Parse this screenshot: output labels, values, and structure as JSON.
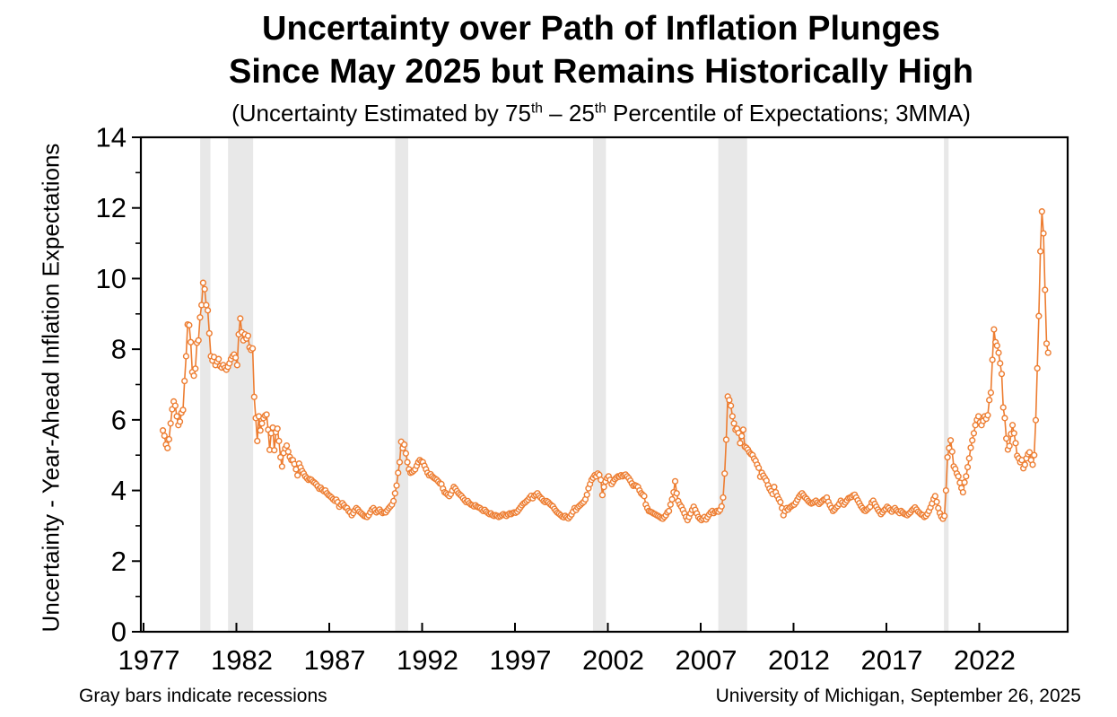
{
  "header": {
    "title_line1": "Uncertainty over Path of Inflation Plunges",
    "title_line2": "Since May 2025 but Remains Historically High",
    "subtitle_parts": [
      "(Uncertainty Estimated by 75",
      "th",
      " – 25",
      "th",
      " Percentile of Expectations; 3MMA)"
    ]
  },
  "footer": {
    "left_note": "Gray bars indicate recessions",
    "right_note": "University of Michigan, September 26, 2025"
  },
  "chart_data": {
    "type": "line",
    "title": "Uncertainty over Path of Inflation Plunges Since May 2025 but Remains Historically High",
    "subtitle": "(Uncertainty Estimated by 75th – 25th Percentile of Expectations; 3MMA)",
    "xlabel": "",
    "ylabel": "Uncertainty - Year-Ahead Inflation Expectations",
    "ylim": [
      0,
      14
    ],
    "xlim": [
      1976.855,
      2026.76
    ],
    "y_major_ticks": [
      0,
      2,
      4,
      6,
      8,
      10,
      12,
      14
    ],
    "y_minor_ticks": [
      1,
      3,
      5,
      7,
      9,
      11,
      13
    ],
    "x_ticks": [
      1977,
      1982,
      1987,
      1992,
      1997,
      2002,
      2007,
      2012,
      2017,
      2022
    ],
    "grid": false,
    "legend": "none",
    "line_color": "#ED7D31",
    "marker": "open-circle",
    "marker_fill": "#FFFFFF",
    "axis_color": "#000000",
    "recession_color": "#E8E8E8",
    "recessions": [
      [
        1980.05,
        1980.6
      ],
      [
        1981.55,
        1982.9
      ],
      [
        1990.55,
        1991.25
      ],
      [
        2001.2,
        2001.9
      ],
      [
        2007.95,
        2009.5
      ],
      [
        2020.1,
        2020.35
      ]
    ],
    "series": {
      "name": "Uncertainty - Year-Ahead Inflation Expectations (75th-25th percentile spread, 3MMA)",
      "frequency": "monthly",
      "start_year": 1978,
      "start_month": 1,
      "end_label": "September 2025",
      "values": [
        5.7,
        5.55,
        5.3,
        5.2,
        5.45,
        5.9,
        6.3,
        6.52,
        6.4,
        6.1,
        5.85,
        5.95,
        6.2,
        6.28,
        7.1,
        7.8,
        8.7,
        8.68,
        8.2,
        7.35,
        7.25,
        7.45,
        8.18,
        8.25,
        8.9,
        9.25,
        9.88,
        9.7,
        9.25,
        9.1,
        8.45,
        7.8,
        7.68,
        7.78,
        7.55,
        7.65,
        7.72,
        7.52,
        7.48,
        7.55,
        7.47,
        7.42,
        7.5,
        7.6,
        7.72,
        7.8,
        7.85,
        7.76,
        7.55,
        8.42,
        8.87,
        8.48,
        8.25,
        8.42,
        8.3,
        8.38,
        8.05,
        7.98,
        8.02,
        6.65,
        6.05,
        5.4,
        6.1,
        5.7,
        5.9,
        6.05,
        6.12,
        6.15,
        5.72,
        5.15,
        5.62,
        5.78,
        5.14,
        5.65,
        5.75,
        5.4,
        4.94,
        4.68,
        5.06,
        5.19,
        5.27,
        5.1,
        4.95,
        4.86,
        4.86,
        4.75,
        4.6,
        4.43,
        4.76,
        4.65,
        4.55,
        4.48,
        4.4,
        4.35,
        4.3,
        4.32,
        4.3,
        4.25,
        4.22,
        4.18,
        4.12,
        4.05,
        4.08,
        4.02,
        3.98,
        4.0,
        3.92,
        3.87,
        3.84,
        3.8,
        3.75,
        3.71,
        3.74,
        3.67,
        3.54,
        3.6,
        3.64,
        3.58,
        3.52,
        3.5,
        3.42,
        3.38,
        3.3,
        3.36,
        3.44,
        3.5,
        3.46,
        3.4,
        3.36,
        3.32,
        3.28,
        3.26,
        3.25,
        3.3,
        3.38,
        3.46,
        3.5,
        3.44,
        3.38,
        3.42,
        3.46,
        3.4,
        3.36,
        3.38,
        3.38,
        3.44,
        3.5,
        3.55,
        3.6,
        3.7,
        3.92,
        4.14,
        4.5,
        4.8,
        5.38,
        5.2,
        5.3,
        5.05,
        4.8,
        4.6,
        4.5,
        4.52,
        4.56,
        4.6,
        4.7,
        4.8,
        4.86,
        4.82,
        4.8,
        4.7,
        4.6,
        4.5,
        4.43,
        4.46,
        4.4,
        4.36,
        4.33,
        4.3,
        4.25,
        4.2,
        4.18,
        4.05,
        3.95,
        3.92,
        3.88,
        3.84,
        3.9,
        4.0,
        4.1,
        4.05,
        3.98,
        3.92,
        3.88,
        3.84,
        3.78,
        3.72,
        3.67,
        3.7,
        3.64,
        3.6,
        3.58,
        3.55,
        3.58,
        3.54,
        3.52,
        3.5,
        3.46,
        3.42,
        3.45,
        3.4,
        3.36,
        3.33,
        3.35,
        3.3,
        3.28,
        3.3,
        3.28,
        3.25,
        3.27,
        3.3,
        3.33,
        3.3,
        3.28,
        3.32,
        3.35,
        3.33,
        3.36,
        3.38,
        3.37,
        3.4,
        3.46,
        3.52,
        3.58,
        3.63,
        3.66,
        3.7,
        3.74,
        3.8,
        3.85,
        3.78,
        3.85,
        3.88,
        3.92,
        3.85,
        3.8,
        3.76,
        3.7,
        3.67,
        3.7,
        3.67,
        3.62,
        3.58,
        3.55,
        3.48,
        3.42,
        3.37,
        3.34,
        3.3,
        3.26,
        3.24,
        3.28,
        3.24,
        3.21,
        3.26,
        3.32,
        3.4,
        3.5,
        3.45,
        3.52,
        3.56,
        3.6,
        3.64,
        3.68,
        3.75,
        3.88,
        4.06,
        4.18,
        4.3,
        4.36,
        4.43,
        4.4,
        4.48,
        4.44,
        4.3,
        3.87,
        4.1,
        4.25,
        4.35,
        4.4,
        4.3,
        4.18,
        4.25,
        4.32,
        4.36,
        4.4,
        4.39,
        4.43,
        4.4,
        4.43,
        4.45,
        4.4,
        4.35,
        4.28,
        4.2,
        4.13,
        4.15,
        4.13,
        4.1,
        4.0,
        3.92,
        3.88,
        3.84,
        3.6,
        3.5,
        3.42,
        3.4,
        3.38,
        3.35,
        3.33,
        3.3,
        3.28,
        3.25,
        3.22,
        3.2,
        3.25,
        3.3,
        3.38,
        3.42,
        3.6,
        3.75,
        3.95,
        4.26,
        3.92,
        3.7,
        3.6,
        3.54,
        3.45,
        3.35,
        3.25,
        3.16,
        3.25,
        3.35,
        3.45,
        3.54,
        3.45,
        3.35,
        3.25,
        3.2,
        3.16,
        3.2,
        3.25,
        3.18,
        3.25,
        3.32,
        3.38,
        3.42,
        3.36,
        3.4,
        3.42,
        3.4,
        3.45,
        3.55,
        3.8,
        4.48,
        5.44,
        6.66,
        6.56,
        6.4,
        6.1,
        5.9,
        5.72,
        5.75,
        5.63,
        5.34,
        5.54,
        5.72,
        5.24,
        5.21,
        5.16,
        5.08,
        5.03,
        5.0,
        4.9,
        4.84,
        4.73,
        4.64,
        4.39,
        4.5,
        4.42,
        4.35,
        4.28,
        4.15,
        4.05,
        3.98,
        3.9,
        4.1,
        3.95,
        3.84,
        3.75,
        3.67,
        3.5,
        3.3,
        3.42,
        3.5,
        3.46,
        3.52,
        3.55,
        3.58,
        3.6,
        3.66,
        3.74,
        3.82,
        3.88,
        3.92,
        3.86,
        3.8,
        3.76,
        3.7,
        3.66,
        3.63,
        3.65,
        3.68,
        3.71,
        3.66,
        3.62,
        3.66,
        3.7,
        3.74,
        3.76,
        3.8,
        3.68,
        3.58,
        3.5,
        3.42,
        3.46,
        3.52,
        3.56,
        3.62,
        3.71,
        3.66,
        3.6,
        3.66,
        3.72,
        3.78,
        3.8,
        3.82,
        3.86,
        3.88,
        3.8,
        3.72,
        3.64,
        3.56,
        3.5,
        3.44,
        3.42,
        3.46,
        3.5,
        3.54,
        3.66,
        3.71,
        3.62,
        3.54,
        3.46,
        3.4,
        3.33,
        3.38,
        3.44,
        3.48,
        3.54,
        3.5,
        3.44,
        3.4,
        3.46,
        3.5,
        3.44,
        3.4,
        3.36,
        3.42,
        3.38,
        3.34,
        3.32,
        3.3,
        3.34,
        3.38,
        3.44,
        3.48,
        3.52,
        3.46,
        3.4,
        3.36,
        3.32,
        3.3,
        3.25,
        3.28,
        3.34,
        3.42,
        3.52,
        3.63,
        3.76,
        3.84,
        3.68,
        3.5,
        3.36,
        3.26,
        3.2,
        3.28,
        4.0,
        4.94,
        5.2,
        5.42,
        5.1,
        4.68,
        4.61,
        4.48,
        4.4,
        4.22,
        4.07,
        3.95,
        4.23,
        4.4,
        4.66,
        4.91,
        5.21,
        5.42,
        5.62,
        5.85,
        6.0,
        6.1,
        5.93,
        5.85,
        5.97,
        6.1,
        6.03,
        6.13,
        6.56,
        6.77,
        7.7,
        8.56,
        8.2,
        8.1,
        7.9,
        7.6,
        7.3,
        6.35,
        6.05,
        5.47,
        5.16,
        5.26,
        5.6,
        5.85,
        5.62,
        5.34,
        4.98,
        4.91,
        4.8,
        4.86,
        4.63,
        4.73,
        4.91,
        5.03,
        5.08,
        4.86,
        4.73,
        5.0,
        5.99,
        7.46,
        8.94,
        10.77,
        11.9,
        11.28,
        9.68,
        8.16,
        7.9
      ]
    }
  }
}
